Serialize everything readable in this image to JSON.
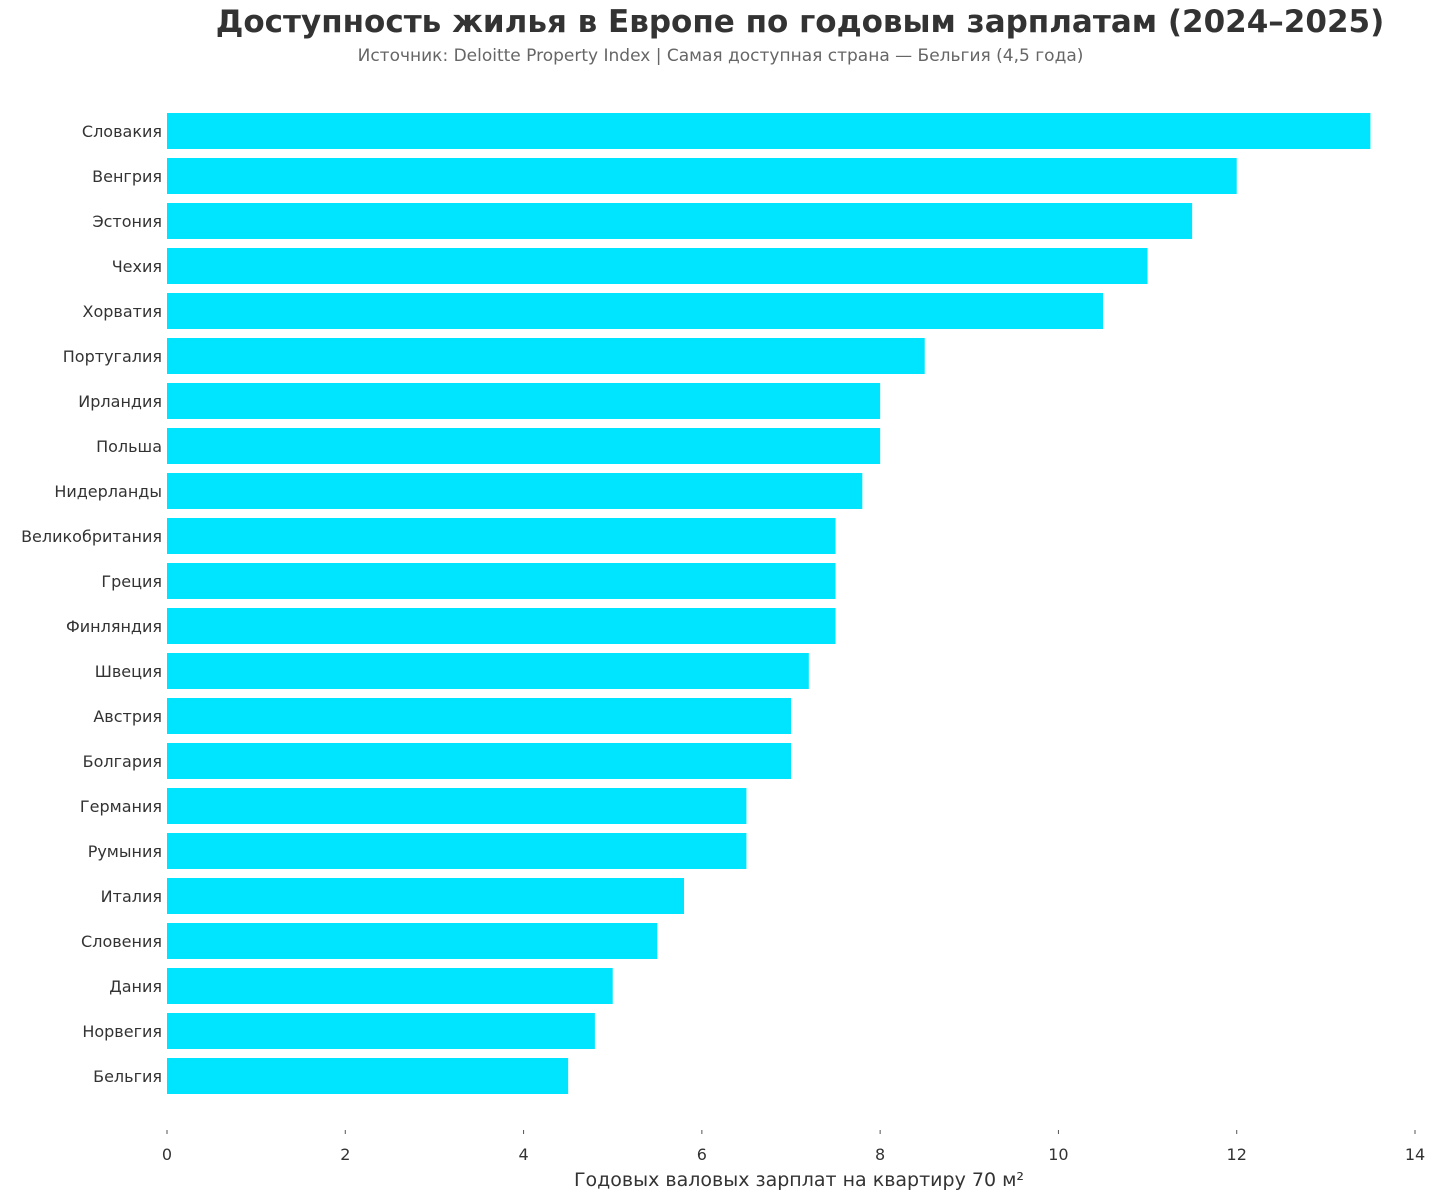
{
  "chart_data": {
    "type": "bar",
    "orientation": "horizontal",
    "title": "Доступность жилья в Европе по годовым зарплатам (2024–2025)",
    "subtitle": "Источник: Deloitte Property Index | Самая доступная страна — Бельгия (4,5 года)",
    "xlabel": "Годовых валовых зарплат на квартиру 70 м²",
    "ylabel": "",
    "xlim": [
      0,
      14
    ],
    "xticks": [
      "0",
      "2",
      "4",
      "6",
      "8",
      "10",
      "12",
      "14"
    ],
    "grid": false,
    "bar_color": "#00E5FF",
    "categories": [
      "Словакия",
      "Венгрия",
      "Эстония",
      "Чехия",
      "Хорватия",
      "Португалия",
      "Ирландия",
      "Польша",
      "Нидерланды",
      "Великобритания",
      "Греция",
      "Финляндия",
      "Швеция",
      "Австрия",
      "Болгария",
      "Германия",
      "Румыния",
      "Италия",
      "Словения",
      "Дания",
      "Норвегия",
      "Бельгия"
    ],
    "values": [
      13.5,
      12.0,
      11.5,
      11.0,
      10.5,
      8.5,
      8.0,
      8.0,
      7.8,
      7.5,
      7.5,
      7.5,
      7.2,
      7.0,
      7.0,
      6.5,
      6.5,
      5.8,
      5.5,
      5.0,
      4.8,
      4.5
    ]
  }
}
